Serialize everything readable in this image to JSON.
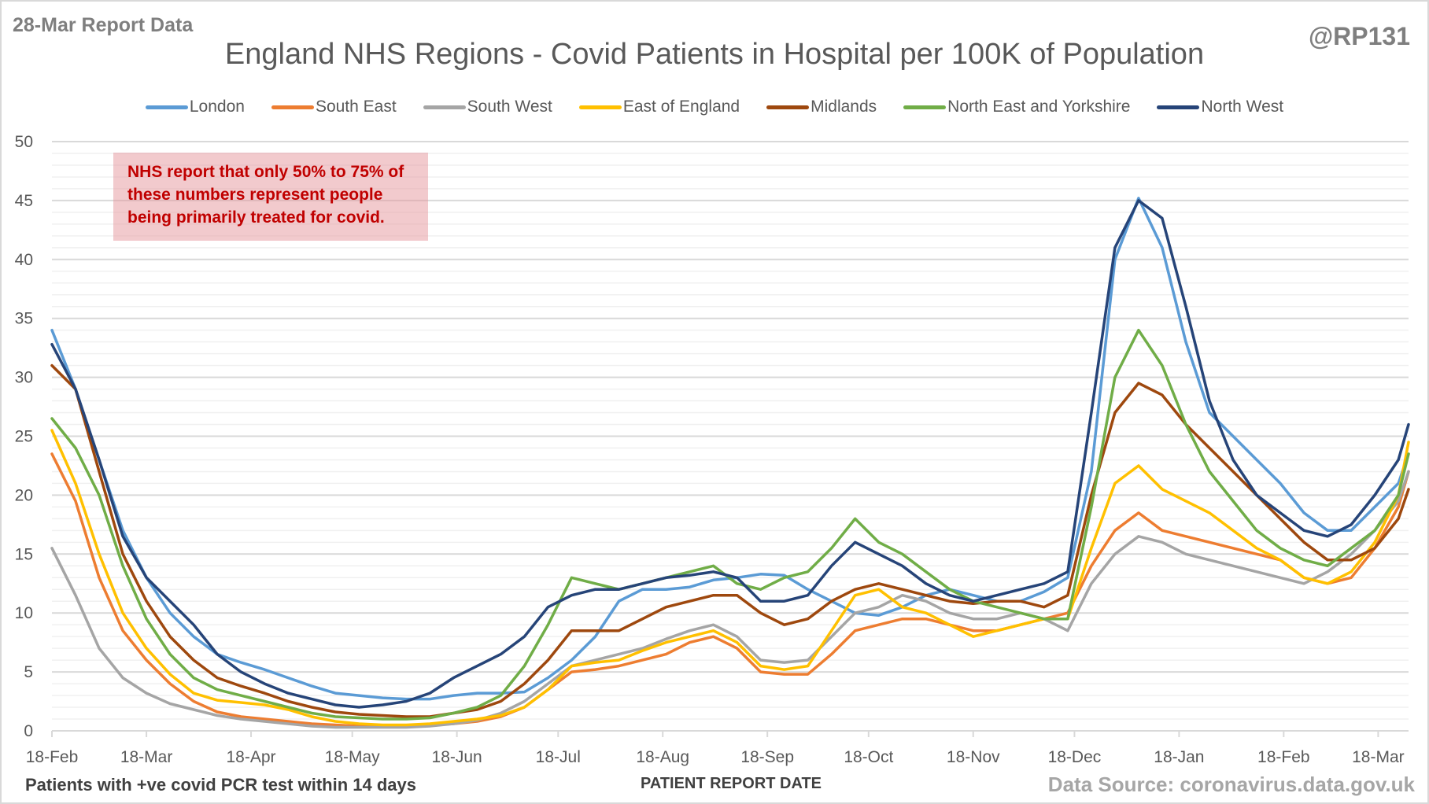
{
  "header": {
    "report_date": "28-Mar Report Data",
    "handle": "@RP131"
  },
  "annotation": {
    "text": "NHS report that only 50% to 75% of these numbers represent people being primarily treated for covid."
  },
  "footer": {
    "left": "Patients with +ve covid PCR test within 14 days",
    "center": "PATIENT REPORT DATE",
    "right": "Data Source: coronavirus.data.gov.uk"
  },
  "chart_data": {
    "type": "line",
    "title": "England NHS Regions - Covid Patients in Hospital per 100K of Population",
    "xlabel": "PATIENT REPORT DATE",
    "ylabel": "",
    "ylim": [
      0,
      50
    ],
    "yticks": [
      0,
      5,
      10,
      15,
      20,
      25,
      30,
      35,
      40,
      45,
      50
    ],
    "grid": true,
    "legend": "top",
    "xtick_labels": [
      "18-Feb",
      "18-Mar",
      "18-Apr",
      "18-May",
      "18-Jun",
      "18-Jul",
      "18-Aug",
      "18-Sep",
      "18-Oct",
      "18-Nov",
      "18-Dec",
      "18-Jan",
      "18-Feb",
      "18-Mar"
    ],
    "xtick_days": [
      0,
      28,
      59,
      89,
      120,
      150,
      181,
      212,
      242,
      273,
      303,
      334,
      365,
      393
    ],
    "x_unit": "days since 18-Feb",
    "x_max_day": 402,
    "x": [
      0,
      7,
      14,
      21,
      28,
      35,
      42,
      49,
      56,
      63,
      70,
      77,
      84,
      91,
      98,
      105,
      112,
      119,
      126,
      133,
      140,
      147,
      154,
      161,
      168,
      175,
      182,
      189,
      196,
      203,
      210,
      217,
      224,
      231,
      238,
      245,
      252,
      259,
      266,
      273,
      280,
      287,
      294,
      301,
      308,
      315,
      322,
      329,
      336,
      343,
      350,
      357,
      364,
      371,
      378,
      385,
      392,
      399,
      402
    ],
    "series": [
      {
        "name": "London",
        "color": "#5b9bd5",
        "values": [
          34.0,
          29.0,
          23.0,
          17.0,
          13.0,
          10.0,
          8.0,
          6.5,
          5.8,
          5.2,
          4.5,
          3.8,
          3.2,
          3.0,
          2.8,
          2.7,
          2.7,
          3.0,
          3.2,
          3.2,
          3.3,
          4.5,
          6.0,
          8.0,
          11.0,
          12.0,
          12.0,
          12.2,
          12.8,
          13.0,
          13.3,
          13.2,
          12.0,
          11.0,
          10.0,
          9.8,
          10.5,
          11.5,
          12.0,
          11.5,
          11.0,
          11.0,
          11.8,
          13.0,
          22.0,
          40.0,
          45.2,
          41.0,
          33.0,
          27.0,
          25.0,
          23.0,
          21.0,
          18.5,
          17.0,
          17.0,
          19.0,
          21.0,
          23.5
        ]
      },
      {
        "name": "South East",
        "color": "#ed7d31",
        "values": [
          23.5,
          19.5,
          13.0,
          8.5,
          6.0,
          4.0,
          2.5,
          1.6,
          1.2,
          1.0,
          0.8,
          0.6,
          0.5,
          0.4,
          0.4,
          0.4,
          0.5,
          0.6,
          0.8,
          1.2,
          2.0,
          3.5,
          5.0,
          5.2,
          5.5,
          6.0,
          6.5,
          7.5,
          8.0,
          7.0,
          5.0,
          4.8,
          4.8,
          6.5,
          8.5,
          9.0,
          9.5,
          9.5,
          9.0,
          8.5,
          8.5,
          9.0,
          9.5,
          10.0,
          14.0,
          17.0,
          18.5,
          17.0,
          16.5,
          16.0,
          15.5,
          15.0,
          14.5,
          13.0,
          12.5,
          13.0,
          15.5,
          19.0,
          22.0
        ]
      },
      {
        "name": "South West",
        "color": "#a5a5a5",
        "values": [
          15.5,
          11.5,
          7.0,
          4.5,
          3.2,
          2.3,
          1.8,
          1.3,
          1.0,
          0.8,
          0.6,
          0.4,
          0.3,
          0.3,
          0.3,
          0.3,
          0.4,
          0.6,
          0.9,
          1.5,
          2.5,
          4.0,
          5.5,
          6.0,
          6.5,
          7.0,
          7.8,
          8.5,
          9.0,
          8.0,
          6.0,
          5.8,
          6.0,
          8.0,
          10.0,
          10.5,
          11.5,
          11.0,
          10.0,
          9.5,
          9.5,
          10.0,
          9.5,
          8.5,
          12.5,
          15.0,
          16.5,
          16.0,
          15.0,
          14.5,
          14.0,
          13.5,
          13.0,
          12.5,
          13.5,
          15.0,
          17.0,
          19.5,
          22.0
        ]
      },
      {
        "name": "East of England",
        "color": "#ffc000",
        "values": [
          25.5,
          21.0,
          15.0,
          10.0,
          7.0,
          4.8,
          3.2,
          2.6,
          2.4,
          2.2,
          1.8,
          1.2,
          0.8,
          0.6,
          0.5,
          0.5,
          0.6,
          0.8,
          1.0,
          1.3,
          2.0,
          3.5,
          5.5,
          5.8,
          6.0,
          6.8,
          7.5,
          8.0,
          8.5,
          7.5,
          5.5,
          5.2,
          5.5,
          8.5,
          11.5,
          12.0,
          10.5,
          10.0,
          9.0,
          8.0,
          8.5,
          9.0,
          9.5,
          9.5,
          15.5,
          21.0,
          22.5,
          20.5,
          19.5,
          18.5,
          17.0,
          15.5,
          14.5,
          13.0,
          12.5,
          13.5,
          16.0,
          20.0,
          24.5
        ]
      },
      {
        "name": "Midlands",
        "color": "#9e480e",
        "values": [
          31.0,
          29.0,
          22.0,
          15.0,
          11.0,
          8.0,
          6.0,
          4.5,
          3.8,
          3.2,
          2.5,
          2.0,
          1.6,
          1.4,
          1.3,
          1.2,
          1.2,
          1.5,
          1.8,
          2.5,
          4.0,
          6.0,
          8.5,
          8.5,
          8.5,
          9.5,
          10.5,
          11.0,
          11.5,
          11.5,
          10.0,
          9.0,
          9.5,
          11.0,
          12.0,
          12.5,
          12.0,
          11.5,
          11.0,
          10.8,
          11.0,
          11.0,
          10.5,
          11.5,
          20.0,
          27.0,
          29.5,
          28.5,
          26.0,
          24.0,
          22.0,
          20.0,
          18.0,
          16.0,
          14.5,
          14.5,
          15.5,
          18.0,
          20.5
        ]
      },
      {
        "name": "North East and Yorkshire",
        "color": "#70ad47",
        "values": [
          26.5,
          24.0,
          20.0,
          14.0,
          9.5,
          6.5,
          4.5,
          3.5,
          3.0,
          2.5,
          2.0,
          1.5,
          1.2,
          1.1,
          1.0,
          1.0,
          1.1,
          1.5,
          2.0,
          3.0,
          5.5,
          9.0,
          13.0,
          12.5,
          12.0,
          12.5,
          13.0,
          13.5,
          14.0,
          12.5,
          12.0,
          13.0,
          13.5,
          15.5,
          18.0,
          16.0,
          15.0,
          13.5,
          12.0,
          11.0,
          10.5,
          10.0,
          9.5,
          9.5,
          19.0,
          30.0,
          34.0,
          31.0,
          26.0,
          22.0,
          19.5,
          17.0,
          15.5,
          14.5,
          14.0,
          15.5,
          17.0,
          20.0,
          23.5
        ]
      },
      {
        "name": "North West",
        "color": "#264478",
        "values": [
          32.8,
          29.0,
          23.0,
          16.5,
          13.0,
          11.0,
          9.0,
          6.5,
          5.0,
          4.0,
          3.2,
          2.7,
          2.2,
          2.0,
          2.2,
          2.5,
          3.2,
          4.5,
          5.5,
          6.5,
          8.0,
          10.5,
          11.5,
          12.0,
          12.0,
          12.5,
          13.0,
          13.2,
          13.5,
          13.0,
          11.0,
          11.0,
          11.5,
          14.0,
          16.0,
          15.0,
          14.0,
          12.5,
          11.5,
          11.0,
          11.5,
          12.0,
          12.5,
          13.5,
          27.0,
          41.0,
          45.0,
          43.5,
          36.0,
          28.0,
          23.0,
          20.0,
          18.5,
          17.0,
          16.5,
          17.5,
          20.0,
          23.0,
          26.0
        ]
      }
    ]
  }
}
